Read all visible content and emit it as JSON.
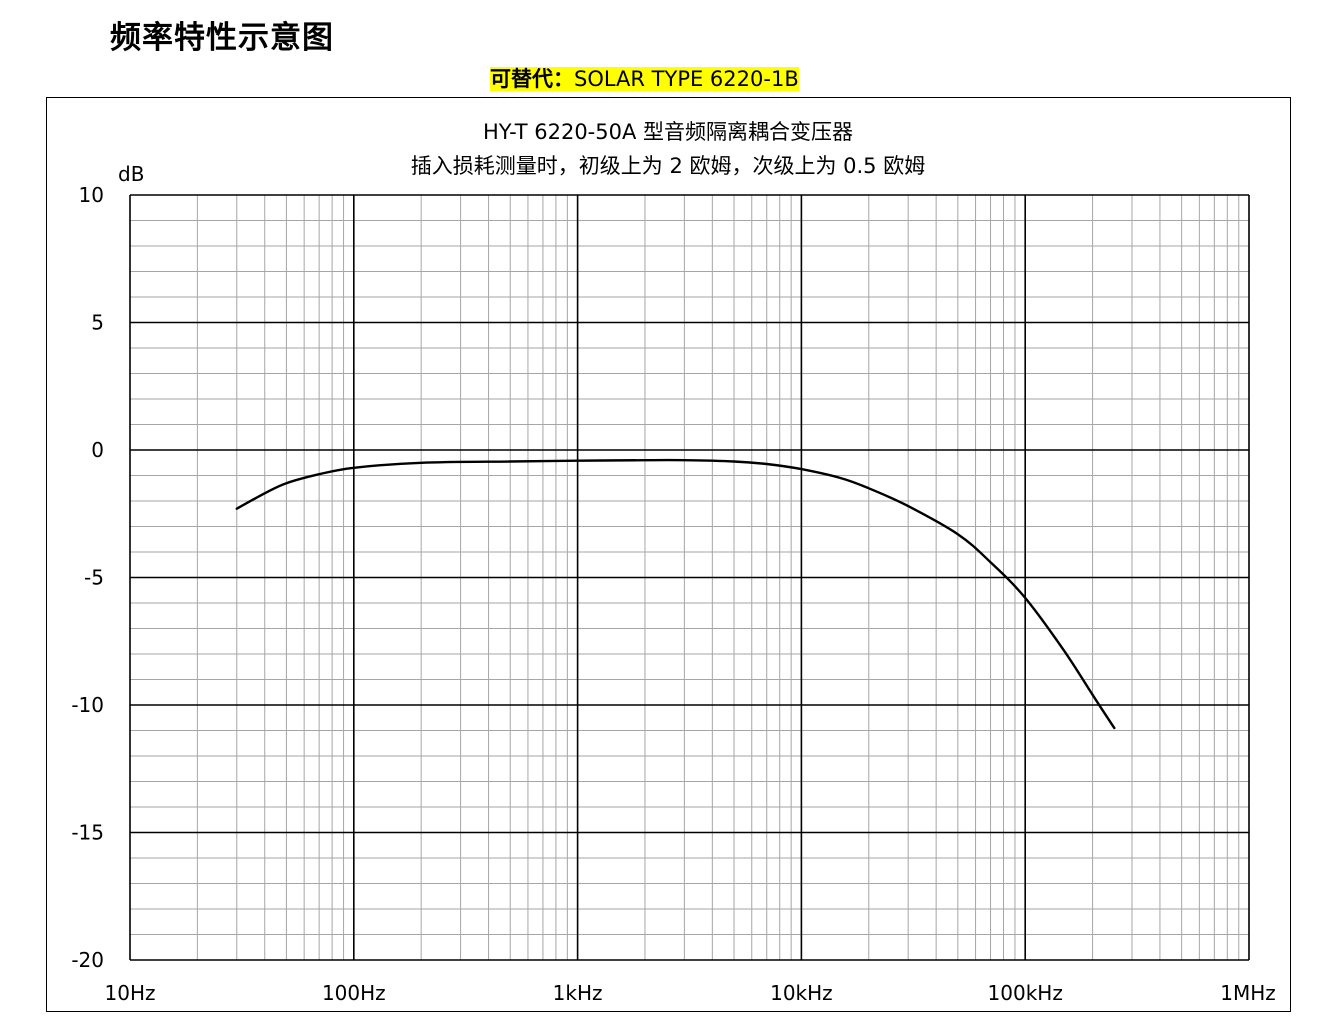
{
  "page": {
    "heading": "频率特性示意图",
    "replacement_prefix": "可替代：",
    "replacement_model": "SOLAR TYPE 6220-1B",
    "highlight_color": "#ffff00"
  },
  "chart_data": {
    "type": "line",
    "title": "HY-T 6220-50A 型音频隔离耦合变压器",
    "subtitle": "插入损耗测量时，初级上为 2 欧姆，次级上为 0.5 欧姆",
    "xlabel": "",
    "ylabel": "dB",
    "x_scale": "log",
    "xlim": [
      10,
      1000000
    ],
    "ylim": [
      -20,
      10
    ],
    "x_ticks": [
      10,
      100,
      1000,
      10000,
      100000,
      1000000
    ],
    "x_tick_labels": [
      "10Hz",
      "100Hz",
      "1kHz",
      "10kHz",
      "100kHz",
      "1MHz"
    ],
    "y_ticks": [
      10,
      5,
      0,
      -5,
      -10,
      -15,
      -20
    ],
    "y_tick_labels": [
      "10",
      "5",
      "0",
      "-5",
      "-10",
      "-15",
      "-20"
    ],
    "grid": true,
    "legend": false,
    "series": [
      {
        "color": "#000000",
        "x": [
          30,
          40,
          50,
          70,
          100,
          200,
          500,
          1000,
          2000,
          3000,
          5000,
          7000,
          10000,
          15000,
          20000,
          30000,
          50000,
          70000,
          100000,
          150000,
          200000,
          250000
        ],
        "y": [
          -2.3,
          -1.7,
          -1.3,
          -0.95,
          -0.7,
          -0.5,
          -0.45,
          -0.42,
          -0.4,
          -0.4,
          -0.45,
          -0.55,
          -0.75,
          -1.1,
          -1.5,
          -2.2,
          -3.3,
          -4.4,
          -5.8,
          -7.9,
          -9.6,
          -10.9
        ]
      }
    ]
  }
}
